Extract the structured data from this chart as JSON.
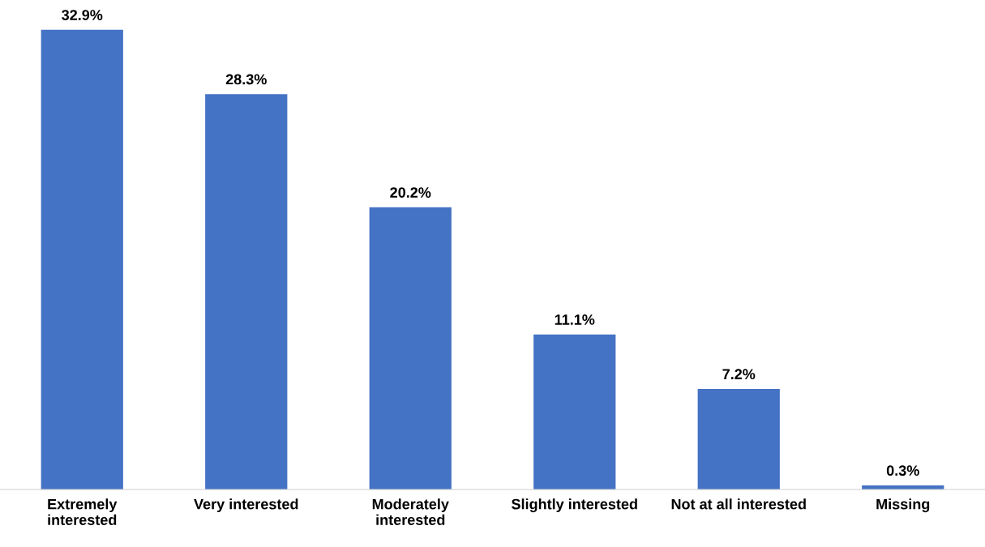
{
  "chart_data": {
    "type": "bar",
    "categories": [
      "Extremely\ninterested",
      "Very interested",
      "Moderately\ninterested",
      "Slightly interested",
      "Not at all interested",
      "Missing"
    ],
    "values": [
      32.9,
      28.3,
      20.2,
      11.1,
      7.2,
      0.3
    ],
    "value_labels": [
      "32.9%",
      "28.3%",
      "20.2%",
      "11.1%",
      "7.2%",
      "0.3%"
    ],
    "color": "#4472c4",
    "grid": false,
    "legend": false
  }
}
